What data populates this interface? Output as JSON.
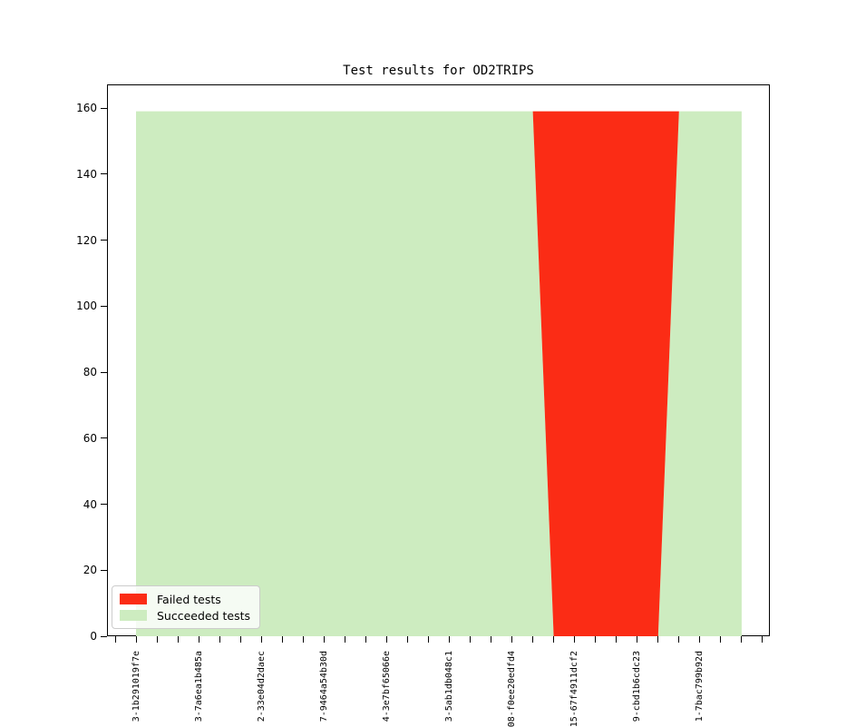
{
  "chart_data": {
    "type": "area",
    "stacked": true,
    "title": "Test results for OD2TRIPS",
    "x": [
      1,
      2,
      3,
      4,
      5,
      6,
      7,
      8,
      9,
      10,
      11,
      12,
      13,
      14,
      15,
      16,
      17,
      18,
      19,
      20,
      21,
      22,
      23,
      24,
      25,
      26,
      27,
      28,
      29,
      30
    ],
    "series": [
      {
        "name": "Failed tests",
        "color": "#fb2c15",
        "values": [
          0,
          0,
          0,
          0,
          0,
          0,
          0,
          0,
          0,
          0,
          0,
          0,
          0,
          0,
          0,
          0,
          0,
          0,
          0,
          0,
          159,
          159,
          159,
          159,
          159,
          159,
          0,
          0,
          0,
          0
        ]
      },
      {
        "name": "Succeeded tests",
        "color": "#cdecc0",
        "values": [
          159,
          159,
          159,
          159,
          159,
          159,
          159,
          159,
          159,
          159,
          159,
          159,
          159,
          159,
          159,
          159,
          159,
          159,
          159,
          159,
          0,
          0,
          0,
          0,
          0,
          0,
          159,
          159,
          159,
          159
        ]
      }
    ],
    "total_per_x": 159,
    "ylim": [
      0,
      160
    ],
    "y_ticks": [
      0,
      20,
      40,
      60,
      80,
      100,
      120,
      140,
      160
    ],
    "x_tick_labels": [
      {
        "x": 1,
        "label": "3-1b291019f7e"
      },
      {
        "x": 4,
        "label": "3-7a6ea1b485a"
      },
      {
        "x": 7,
        "label": "2-33e04d2daec"
      },
      {
        "x": 10,
        "label": "7-9464a54b30d"
      },
      {
        "x": 13,
        "label": "4-3e7bf65066e"
      },
      {
        "x": 16,
        "label": "3-5ab1db048c1"
      },
      {
        "x": 19,
        "label": "08-f0ee20edfd4"
      },
      {
        "x": 22,
        "label": "15-67f4911dcf2"
      },
      {
        "x": 25,
        "label": "9-cbd1b6cdc23"
      },
      {
        "x": 28,
        "label": "1-7bac799b92d"
      }
    ],
    "legend": {
      "position": "lower left",
      "entries": [
        "Failed tests",
        "Succeeded tests"
      ]
    },
    "grid": false
  }
}
